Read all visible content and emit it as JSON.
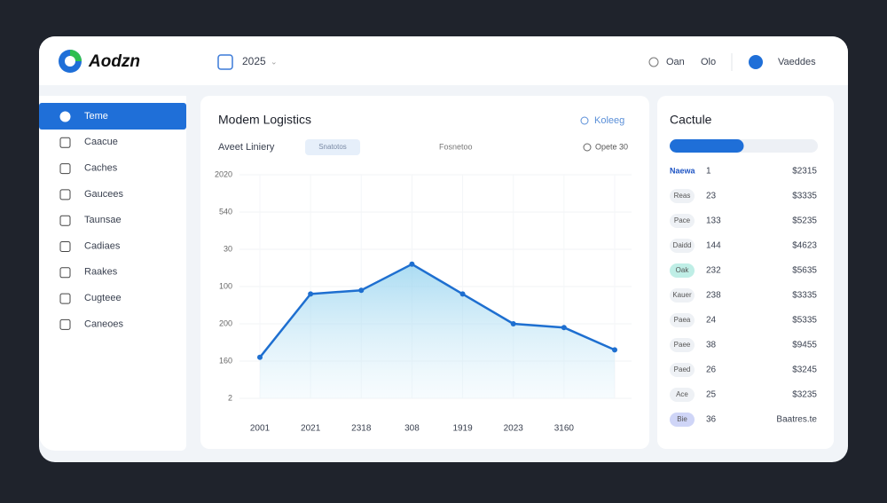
{
  "header": {
    "logo": "Aodzn",
    "year": "2025",
    "links": [
      "Oan",
      "Olo"
    ],
    "user": "Vaeddes"
  },
  "sidebar": {
    "items": [
      "Teme",
      "Caacue",
      "Caches",
      "Gaucees",
      "Taunsae",
      "Cadiaes",
      "Raakes",
      "Cugteee",
      "Caneoes"
    ]
  },
  "main": {
    "title": "Modem Logistics",
    "action": "Koleeg",
    "subtitle": "Aveet Liniery",
    "tab": "Snatotos",
    "filter": "Fosnetoo",
    "period": "Opete 30"
  },
  "chart_data": {
    "type": "line",
    "categories": [
      "2001",
      "2021",
      "2318",
      "308",
      "1919",
      "2023",
      "3160",
      null
    ],
    "series": [
      {
        "name": null,
        "color": "#1e6fd0",
        "values": [
          1.1,
          2.8,
          2.9,
          3.6,
          2.8,
          2.0,
          1.9,
          1.3
        ]
      }
    ],
    "ylim": [
      0,
      6
    ],
    "yticks": [
      {
        "value": 0,
        "label": "2"
      },
      {
        "value": 1,
        "label": "160"
      },
      {
        "value": 2,
        "label": "200"
      },
      {
        "value": 3,
        "label": "100"
      },
      {
        "value": 4,
        "label": "30"
      },
      {
        "value": 5,
        "label": "540"
      },
      {
        "value": 6,
        "label": "2020"
      }
    ],
    "grid": true
  },
  "side": {
    "title": "Cactule",
    "progress": 50,
    "rows": [
      [
        "Naewa",
        "1",
        "$2315"
      ],
      [
        "Reas",
        "23",
        "$3335"
      ],
      [
        "Pace",
        "133",
        "$5235"
      ],
      [
        "Daidd",
        "144",
        "$4623"
      ],
      [
        "Oak",
        "232",
        "$5635"
      ],
      [
        "Kauer",
        "238",
        "$3335"
      ],
      [
        "Paea",
        "24",
        "$5335"
      ],
      [
        "Paee",
        "38",
        "$9455"
      ],
      [
        "Paed",
        "26",
        "$3245"
      ],
      [
        "Ace",
        "25",
        "$3235"
      ],
      [
        "Bie",
        "36",
        "Baatres.te"
      ]
    ]
  }
}
